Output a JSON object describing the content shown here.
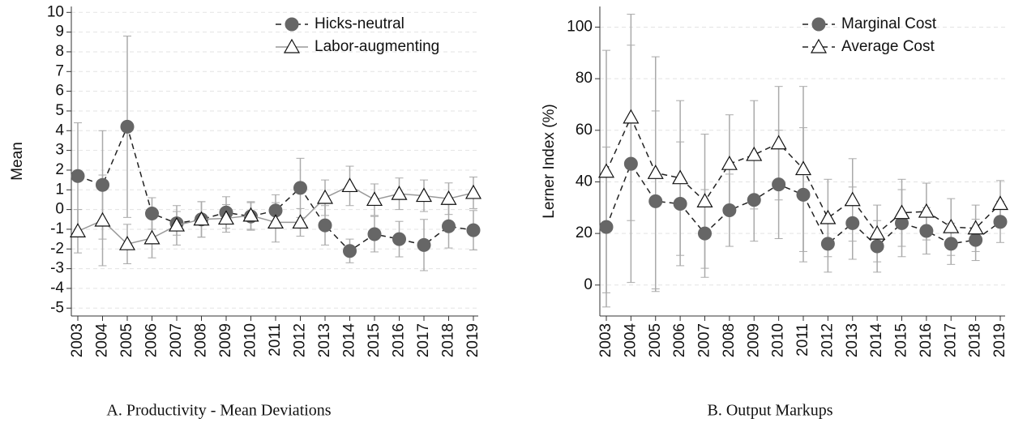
{
  "chart_data": [
    {
      "type": "line",
      "caption": "A. Productivity - Mean Deviations",
      "ylabel": "Mean",
      "categories": [
        "2003",
        "2004",
        "2005",
        "2006",
        "2007",
        "2008",
        "2009",
        "2010",
        "2011",
        "2012",
        "2013",
        "2014",
        "2015",
        "2016",
        "2017",
        "2018",
        "2019"
      ],
      "ylim": [
        -5.4,
        10.3
      ],
      "yticks": [
        -5,
        -4,
        -3,
        -2,
        -1,
        0,
        1,
        2,
        3,
        4,
        5,
        6,
        7,
        8,
        9,
        10
      ],
      "grid": true,
      "legend": "upper right",
      "series": [
        {
          "name": "Hicks-neutral",
          "color": "#666666",
          "line_color": "#222222",
          "dash": true,
          "marker": "circle",
          "values": [
            1.7,
            1.25,
            4.2,
            -0.2,
            -0.7,
            -0.5,
            -0.15,
            -0.35,
            -0.05,
            1.1,
            -0.8,
            -2.1,
            -1.25,
            -1.5,
            -1.8,
            -0.85,
            -1.05
          ],
          "errors": [
            2.7,
            2.75,
            4.6,
            0.8,
            0.6,
            0.9,
            0.8,
            0.7,
            0.8,
            1.5,
            1.0,
            0.6,
            0.9,
            0.9,
            1.3,
            1.1,
            1.0
          ]
        },
        {
          "name": "Labor-augmenting",
          "color": "#ffffff",
          "line_color": "#999999",
          "dash": false,
          "marker": "triangle",
          "values": [
            -1.1,
            -0.55,
            -1.75,
            -1.45,
            -0.8,
            -0.5,
            -0.45,
            -0.3,
            -0.65,
            -0.65,
            0.6,
            1.2,
            0.5,
            0.8,
            0.7,
            0.55,
            0.85
          ],
          "errors": [
            1.1,
            2.3,
            1.0,
            1.0,
            1.0,
            0.9,
            0.7,
            0.7,
            1.0,
            0.7,
            0.9,
            1.0,
            0.8,
            0.8,
            0.8,
            0.8,
            0.8
          ]
        }
      ]
    },
    {
      "type": "line",
      "caption": "B. Output Markups",
      "ylabel": "Lerner Index (%)",
      "categories": [
        "2003",
        "2004",
        "2005",
        "2006",
        "2007",
        "2008",
        "2009",
        "2010",
        "2011",
        "2012",
        "2013",
        "2014",
        "2015",
        "2016",
        "2017",
        "2018",
        "2019"
      ],
      "ylim": [
        -12,
        108
      ],
      "yticks": [
        0,
        20,
        40,
        60,
        80,
        100
      ],
      "grid": true,
      "legend": "upper right",
      "series": [
        {
          "name": "Marginal Cost",
          "color": "#666666",
          "line_color": "#222222",
          "dash": true,
          "marker": "circle",
          "values": [
            22.5,
            47,
            32.5,
            31.5,
            20,
            29,
            33,
            39,
            35,
            16,
            24,
            15,
            24,
            21,
            16,
            17.5,
            24.5
          ],
          "errors": [
            31,
            46,
            35,
            24,
            17,
            14,
            16,
            21,
            26,
            11,
            14,
            10,
            13,
            9,
            8,
            8,
            8
          ]
        },
        {
          "name": "Average Cost",
          "color": "#ffffff",
          "line_color": "#222222",
          "dash": true,
          "marker": "triangle",
          "values": [
            44,
            65,
            43.5,
            41.5,
            32.5,
            47,
            50.5,
            55,
            45,
            26,
            33,
            20,
            28,
            28.5,
            22.5,
            22,
            31.5
          ],
          "errors": [
            47,
            40,
            45,
            30,
            26,
            19,
            21,
            22,
            32,
            15,
            16,
            11,
            13,
            11,
            11,
            9,
            9
          ]
        }
      ]
    }
  ]
}
